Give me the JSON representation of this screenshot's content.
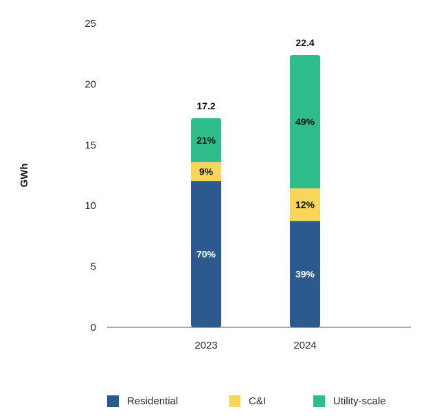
{
  "chart_data": {
    "type": "bar",
    "stacked": true,
    "ylabel": "GWh",
    "xlabel": "",
    "ylim": [
      0,
      25
    ],
    "yticks": [
      0,
      5,
      10,
      15,
      20,
      25
    ],
    "grid": false,
    "legend_position": "bottom",
    "categories": [
      "2023",
      "2024"
    ],
    "totals": [
      "17.2",
      "22.4"
    ],
    "series": [
      {
        "name": "Residential",
        "color": "#2c598e",
        "label_color": "#ffffff",
        "values": [
          12.04,
          8.74
        ],
        "labels": [
          "70%",
          "39%"
        ]
      },
      {
        "name": "C&I",
        "color": "#f7d659",
        "label_color": "#111111",
        "values": [
          1.55,
          2.69
        ],
        "labels": [
          "9%",
          "12%"
        ]
      },
      {
        "name": "Utility-scale",
        "color": "#2ebc8b",
        "label_color": "#111111",
        "values": [
          3.61,
          10.97
        ],
        "labels": [
          "21%",
          "49%"
        ]
      }
    ]
  }
}
